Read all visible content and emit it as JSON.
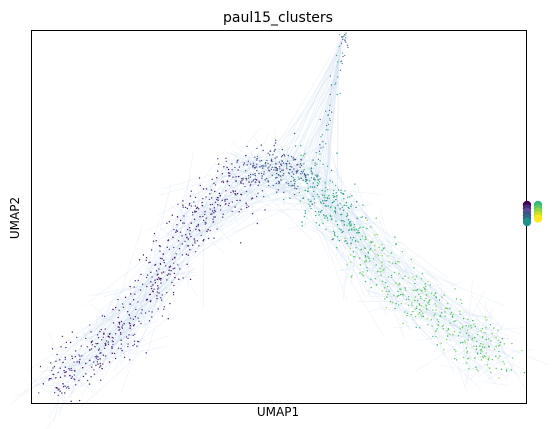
{
  "chart_data": {
    "type": "scatter",
    "title": "paul15_clusters",
    "xlabel": "UMAP1",
    "ylabel": "UMAP2",
    "ticks": "none",
    "legend_placement": "right",
    "legend_entries": [],
    "edge_color": "#c6dbef",
    "point_size": "tiny",
    "colormap": "viridis",
    "series": [
      {
        "color": "#440154",
        "values": []
      },
      {
        "color": "#472c7a",
        "values": []
      },
      {
        "color": "#5b4b9a",
        "values": []
      },
      {
        "color": "#3b528b",
        "values": []
      },
      {
        "color": "#31688e",
        "values": []
      },
      {
        "color": "#21918c",
        "values": []
      },
      {
        "color": "#35b779",
        "values": []
      },
      {
        "color": "#5ec962",
        "values": []
      },
      {
        "color": "#90d743",
        "values": []
      },
      {
        "color": "#c8e020",
        "values": []
      },
      {
        "color": "#fde725",
        "values": []
      }
    ],
    "backbone": {
      "x": [
        0.04,
        0.12,
        0.2,
        0.27,
        0.33,
        0.4,
        0.46,
        0.52,
        0.56,
        0.61,
        0.67,
        0.73,
        0.8,
        0.88,
        0.95
      ],
      "y": [
        0.06,
        0.12,
        0.22,
        0.36,
        0.49,
        0.58,
        0.62,
        0.63,
        0.6,
        0.52,
        0.43,
        0.32,
        0.26,
        0.18,
        0.12
      ]
    },
    "spike": {
      "x": [
        0.57,
        0.6,
        0.62,
        0.63
      ],
      "y": [
        0.6,
        0.78,
        0.92,
        0.99
      ]
    }
  }
}
